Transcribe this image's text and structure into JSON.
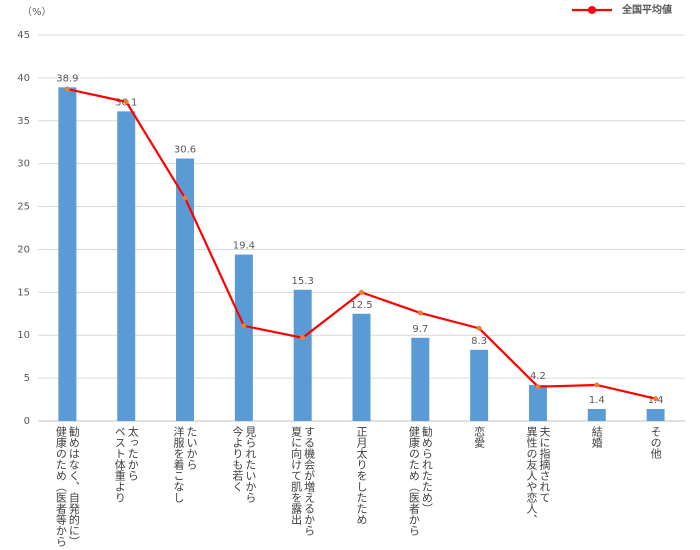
{
  "chart_data": {
    "type": "bar_line",
    "y_label": "（%）",
    "categories": [
      "健康のため（医者等から\n勧めはなく、自発的に）",
      "ベスト体重より\n太ったから",
      "洋服を着こなし\nたいから",
      "今よりも若く\n見られたいから",
      "夏に向けて肌を露出\nする機会が増えるから",
      "正月太りをしたため",
      "健康のため（医者から\n勧められたため）",
      "恋愛",
      "異性の友人や恋人、\n夫に指摘されて",
      "結婚",
      "その他"
    ],
    "series": [
      {
        "type": "bar",
        "color": "#5b9bd5",
        "values": [
          38.9,
          36.1,
          30.6,
          19.4,
          15.3,
          12.5,
          9.7,
          8.3,
          4.2,
          1.4,
          1.4
        ]
      },
      {
        "type": "line",
        "name": "全国平均値",
        "color": "#ff0000",
        "marker_color": "#ed7d31",
        "values": [
          38.7,
          37.2,
          26.0,
          11.1,
          9.7,
          15.0,
          12.6,
          10.8,
          4.0,
          4.2,
          2.6
        ]
      }
    ],
    "ylim": [
      0,
      45
    ],
    "yticks": [
      0,
      5,
      10,
      15,
      20,
      25,
      30,
      35,
      40,
      45
    ],
    "grid": true,
    "legend": "top-right"
  }
}
